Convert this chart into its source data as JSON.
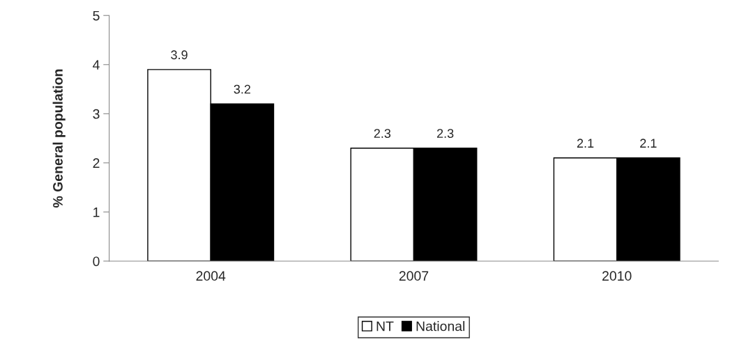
{
  "chart_data": {
    "type": "bar",
    "ylabel": "% General population",
    "categories": [
      "2004",
      "2007",
      "2010"
    ],
    "series": [
      {
        "name": "NT",
        "color": "#ffffff",
        "values": [
          3.9,
          2.3,
          2.1
        ]
      },
      {
        "name": "National",
        "color": "#000000",
        "values": [
          3.2,
          2.3,
          2.1
        ]
      }
    ],
    "ylim": [
      0,
      5
    ],
    "yticks": [
      0,
      1,
      2,
      3,
      4,
      5
    ],
    "grid": false,
    "legend": "bottom",
    "data_labels": true
  }
}
